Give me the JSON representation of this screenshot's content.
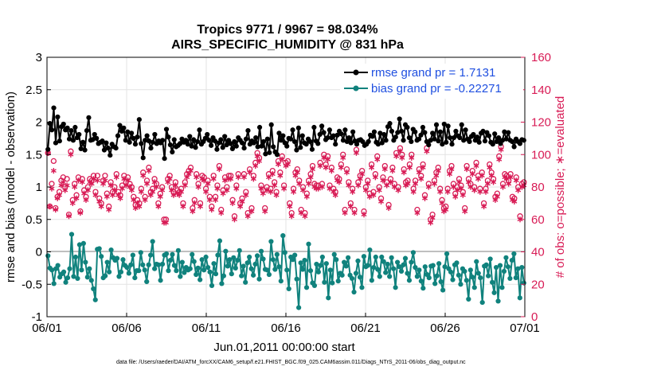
{
  "chart_data": {
    "type": "line",
    "title": "Tropics 9771 / 9967 = 98.034%",
    "subtitle": "AIRS_SPECIFIC_HUMIDITY @ 831 hPa",
    "xlabel": "Jun.01,2011 00:00:00 start",
    "ylabel": "rmse and bias (model - observation)",
    "y2label": "# of obs: o=possible; ∗=evaluated",
    "footer": "data file: /Users/raeder/DAI/ATM_forcXX/CAM6_setup/f.e21.FHIST_BGC.f09_025.CAM6assim.011/Diags_NTrS_2011-06/obs_diag_output.nc",
    "x_ticks": [
      "06/01",
      "06/06",
      "06/11",
      "06/16",
      "06/21",
      "06/26",
      "07/01"
    ],
    "x_range_days": [
      0,
      30
    ],
    "ylim": [
      -1,
      3
    ],
    "y_ticks": [
      "-1",
      "-0.5",
      "0",
      "0.5",
      "1",
      "1.5",
      "2",
      "2.5",
      "3"
    ],
    "y2lim": [
      0,
      160
    ],
    "y2_ticks": [
      "0",
      "20",
      "40",
      "60",
      "80",
      "100",
      "120",
      "140",
      "160"
    ],
    "colors": {
      "rmse": "#000000",
      "bias": "#10827d",
      "obs": "#d81b55",
      "zero": "#bfbfbf",
      "legend_text": "#1f4fe0"
    },
    "series": [
      {
        "name": "rmse grand pr = 1.7131",
        "values": [
          1.58,
          1.98,
          1.88,
          2.22,
          1.68,
          2.08,
          1.71,
          1.93,
          1.97,
          1.88,
          1.91,
          1.74,
          1.87,
          1.72,
          1.92,
          1.76,
          1.81,
          1.59,
          1.69,
          1.57,
          1.87,
          2.07,
          1.72,
          1.73,
          1.81,
          1.75,
          1.67,
          1.69,
          1.71,
          1.57,
          1.68,
          1.6,
          1.49,
          1.66,
          1.62,
          1.6,
          1.79,
          1.95,
          1.86,
          1.91,
          1.72,
          1.85,
          1.69,
          1.83,
          1.75,
          1.66,
          1.77,
          2.04,
          1.67,
          1.45,
          1.72,
          1.79,
          1.71,
          1.6,
          1.69,
          1.81,
          1.67,
          1.71,
          1.68,
          1.72,
          1.44,
          1.89,
          1.77,
          1.65,
          1.54,
          1.73,
          1.62,
          1.64,
          1.67,
          1.74,
          1.69,
          1.72,
          1.66,
          1.78,
          1.63,
          1.73,
          1.61,
          1.7,
          1.88,
          1.66,
          1.7,
          1.75,
          1.81,
          1.72,
          1.64,
          1.76,
          1.71,
          1.58,
          1.68,
          1.73,
          1.61,
          1.78,
          1.65,
          1.72,
          1.67,
          1.59,
          1.7,
          1.63,
          1.76,
          1.72,
          1.68,
          1.6,
          1.74,
          1.87,
          1.66,
          1.71,
          1.68,
          1.76,
          1.62,
          1.92,
          1.63,
          1.7,
          1.51,
          1.74,
          1.53,
          1.96,
          1.62,
          1.54,
          1.5,
          1.83,
          1.72,
          1.79,
          1.68,
          1.63,
          1.75,
          1.74,
          1.88,
          1.7,
          1.57,
          1.91,
          1.61,
          1.79,
          1.68,
          1.66,
          1.74,
          1.7,
          1.58,
          1.92,
          1.71,
          1.67,
          1.81,
          1.94,
          1.84,
          1.73,
          1.76,
          1.88,
          1.76,
          1.79,
          1.66,
          1.8,
          1.86,
          1.82,
          1.72,
          1.88,
          1.7,
          1.76,
          1.68,
          1.85,
          1.71,
          1.66,
          1.72,
          1.73,
          1.7,
          1.64,
          1.66,
          1.7,
          1.8,
          1.78,
          1.85,
          1.69,
          1.66,
          1.83,
          1.68,
          1.81,
          1.72,
          1.93,
          1.98,
          1.86,
          1.72,
          1.77,
          1.84,
          2.05,
          1.86,
          1.72,
          1.96,
          1.92,
          1.76,
          1.7,
          1.89,
          1.85,
          1.72,
          1.74,
          1.8,
          1.92,
          1.84,
          1.7,
          1.65,
          1.72,
          1.83,
          1.74,
          1.96,
          1.71,
          1.85,
          1.66,
          1.97,
          1.69,
          1.94,
          1.76,
          1.66,
          1.76,
          1.86,
          1.79,
          1.76,
          1.96,
          1.72,
          1.88,
          1.74,
          1.7,
          1.78,
          1.81,
          1.72,
          1.77,
          1.69,
          1.83,
          1.86,
          1.71,
          1.84,
          1.79,
          1.69,
          1.66,
          1.82,
          1.7,
          1.76,
          1.67,
          1.72,
          1.85,
          1.74,
          1.84,
          1.72,
          1.7,
          1.62,
          1.74,
          1.7,
          1.67,
          1.73,
          1.72
        ]
      },
      {
        "name": "bias grand pr = -0.22271",
        "values": [
          -0.06,
          -0.25,
          -0.28,
          -0.49,
          -0.26,
          -0.21,
          -0.39,
          -0.34,
          -0.31,
          -0.47,
          -0.4,
          -0.26,
          0.27,
          -0.38,
          -0.08,
          -0.41,
          0.11,
          -0.28,
          0.13,
          -0.16,
          -0.39,
          -0.26,
          -0.44,
          -0.57,
          -0.74,
          0.04,
          0.05,
          -0.07,
          -0.4,
          -0.37,
          -0.16,
          -0.31,
          0.03,
          -0.09,
          -0.13,
          -0.1,
          -0.38,
          -0.31,
          -0.12,
          -0.21,
          -0.24,
          -0.33,
          -0.2,
          -0.05,
          -0.4,
          -0.29,
          -0.29,
          -0.01,
          -0.2,
          -0.28,
          -0.46,
          -0.2,
          -0.05,
          0.16,
          -0.26,
          -0.19,
          -0.2,
          -0.44,
          -0.19,
          -0.05,
          -0.03,
          -0.29,
          -0.13,
          -0.04,
          -0.21,
          -0.29,
          0.02,
          -0.38,
          -0.16,
          -0.32,
          -0.24,
          -0.28,
          -0.26,
          -0.04,
          -0.15,
          -0.35,
          -0.25,
          -0.43,
          -0.12,
          -0.28,
          -0.08,
          -0.24,
          -0.31,
          -0.52,
          -0.18,
          -0.34,
          -0.05,
          0.17,
          -0.49,
          -0.37,
          0.01,
          -0.22,
          -0.12,
          -0.34,
          -0.09,
          -0.25,
          -0.13,
          0.02,
          -0.37,
          -0.22,
          -0.47,
          -0.17,
          -0.08,
          -0.26,
          -0.36,
          -0.19,
          -0.06,
          -0.42,
          0.01,
          -0.11,
          -0.27,
          -0.28,
          -0.35,
          0.16,
          -0.12,
          -0.27,
          -0.04,
          -0.23,
          -0.45,
          0.25,
          -0.01,
          -0.28,
          -0.57,
          -0.08,
          -0.12,
          -0.05,
          -0.42,
          -0.86,
          -0.17,
          -0.27,
          -0.13,
          -0.55,
          0.12,
          -0.29,
          -0.48,
          -0.52,
          -0.19,
          -0.31,
          -0.21,
          -0.08,
          -0.47,
          -0.18,
          -0.71,
          -0.28,
          -0.48,
          -0.04,
          -0.12,
          -0.45,
          -0.33,
          -0.36,
          -0.16,
          -0.22,
          -0.09,
          -0.36,
          -0.41,
          -0.62,
          -0.33,
          -0.14,
          -0.39,
          -0.55,
          -0.07,
          -0.23,
          -0.21,
          0.03,
          -0.44,
          -0.24,
          -0.08,
          -0.27,
          -0.38,
          -0.08,
          -0.15,
          -0.32,
          -0.19,
          -0.38,
          -0.09,
          -0.26,
          -0.55,
          -0.16,
          -0.23,
          -0.3,
          -0.2,
          -0.1,
          -0.33,
          -0.44,
          -0.16,
          -0.01,
          -0.24,
          -0.38,
          -0.28,
          -0.45,
          -0.56,
          -0.23,
          -0.35,
          -0.4,
          -0.22,
          -0.21,
          -0.49,
          -0.37,
          -0.18,
          -0.46,
          -0.59,
          -0.23,
          -0.03,
          -0.26,
          -0.31,
          -0.43,
          -0.2,
          -0.17,
          -0.36,
          -0.5,
          -0.26,
          -0.3,
          -0.44,
          -0.73,
          -0.28,
          -0.39,
          -0.55,
          -0.15,
          -0.33,
          -0.4,
          -0.78,
          -0.22,
          -0.2,
          -0.37,
          -0.11,
          -0.47,
          -0.63,
          -0.24,
          -0.76,
          -0.21,
          -0.55,
          -0.3,
          -0.09,
          -0.23,
          -0.41,
          -0.13,
          -0.03,
          -0.4,
          -0.26,
          -0.71,
          -0.24,
          -0.48
        ]
      },
      {
        "name": "# obs possible",
        "values": [
          101,
          68,
          82,
          96,
          67,
          74,
          77,
          84,
          86,
          80,
          85,
          63,
          102,
          72,
          82,
          75,
          86,
          65,
          85,
          78,
          74,
          80,
          85,
          84,
          87,
          77,
          87,
          73,
          70,
          84,
          87,
          76,
          68,
          83,
          77,
          80,
          88,
          77,
          75,
          81,
          87,
          83,
          86,
          82,
          80,
          74,
          69,
          72,
          70,
          79,
          89,
          74,
          84,
          92,
          77,
          79,
          85,
          82,
          70,
          76,
          80,
          60,
          60,
          85,
          87,
          80,
          77,
          83,
          78,
          77,
          79,
          70,
          83,
          88,
          90,
          92,
          67,
          72,
          88,
          82,
          70,
          87,
          86,
          79,
          84,
          74,
          68,
          87,
          74,
          81,
          93,
          66,
          78,
          86,
          80,
          87,
          87,
          72,
          62,
          81,
          88,
          70,
          73,
          88,
          77,
          64,
          91,
          67,
          87,
          95,
          101,
          98,
          81,
          78,
          67,
          80,
          88,
          79,
          90,
          83,
          77,
          96,
          89,
          99,
          81,
          95,
          96,
          70,
          64,
          79,
          89,
          91,
          84,
          66,
          80,
          64,
          76,
          84,
          88,
          93,
          82,
          81,
          81,
          95,
          82,
          100,
          94,
          99,
          81,
          92,
          79,
          77,
          86,
          85,
          94,
          100,
          66,
          91,
          83,
          70,
          79,
          66,
          103,
          83,
          87,
          90,
          65,
          80,
          84,
          76,
          94,
          77,
          88,
          99,
          80,
          73,
          86,
          93,
          83,
          69,
          85,
          92,
          82,
          101,
          80,
          104,
          100,
          91,
          83,
          84,
          94,
          100,
          79,
          84,
          66,
          91,
          87,
          94,
          75,
          104,
          82,
          60,
          63,
          84,
          89,
          92,
          79,
          72,
          67,
          68,
          79,
          90,
          93,
          82,
          76,
          80,
          85,
          81,
          77,
          67,
          93,
          85,
          82,
          90,
          80,
          95,
          87,
          79,
          89,
          70,
          79,
          84,
          94,
          89,
          85,
          74,
          76,
          99,
          105,
          82,
          88,
          87,
          84,
          88,
          74,
          73,
          86,
          80,
          62,
          82,
          83
        ]
      },
      {
        "name": "# obs evaluated",
        "values": [
          101,
          68,
          79,
          90,
          66,
          73,
          75,
          81,
          83,
          78,
          81,
          62,
          100,
          70,
          80,
          73,
          84,
          64,
          83,
          76,
          72,
          78,
          83,
          82,
          85,
          75,
          84,
          71,
          68,
          82,
          84,
          74,
          66,
          81,
          75,
          78,
          86,
          75,
          73,
          79,
          85,
          81,
          84,
          80,
          78,
          72,
          67,
          70,
          68,
          77,
          87,
          72,
          82,
          90,
          75,
          77,
          83,
          80,
          68,
          74,
          78,
          58,
          58,
          83,
          85,
          78,
          75,
          81,
          76,
          75,
          77,
          68,
          81,
          86,
          88,
          90,
          65,
          70,
          86,
          80,
          68,
          85,
          84,
          77,
          82,
          72,
          66,
          85,
          72,
          79,
          91,
          64,
          76,
          84,
          78,
          85,
          85,
          70,
          60,
          79,
          86,
          68,
          71,
          86,
          75,
          62,
          89,
          65,
          85,
          93,
          99,
          96,
          79,
          76,
          65,
          78,
          86,
          77,
          88,
          81,
          75,
          94,
          87,
          97,
          79,
          93,
          94,
          68,
          62,
          77,
          87,
          89,
          82,
          64,
          78,
          62,
          74,
          82,
          86,
          91,
          80,
          79,
          79,
          93,
          80,
          98,
          92,
          97,
          79,
          90,
          77,
          75,
          84,
          83,
          92,
          98,
          64,
          89,
          81,
          68,
          77,
          64,
          101,
          81,
          85,
          88,
          63,
          78,
          82,
          74,
          92,
          75,
          86,
          97,
          78,
          71,
          84,
          91,
          81,
          67,
          83,
          90,
          80,
          99,
          78,
          102,
          98,
          89,
          81,
          82,
          92,
          98,
          77,
          82,
          64,
          89,
          85,
          92,
          73,
          102,
          80,
          58,
          61,
          82,
          87,
          90,
          77,
          70,
          65,
          66,
          77,
          88,
          91,
          80,
          74,
          78,
          83,
          79,
          75,
          65,
          91,
          83,
          80,
          88,
          78,
          93,
          85,
          77,
          87,
          68,
          77,
          82,
          92,
          87,
          83,
          72,
          74,
          97,
          103,
          80,
          86,
          85,
          82,
          86,
          72,
          71,
          84,
          78,
          60,
          80,
          81
        ]
      }
    ],
    "legend_position": "top-right",
    "grid": true
  }
}
